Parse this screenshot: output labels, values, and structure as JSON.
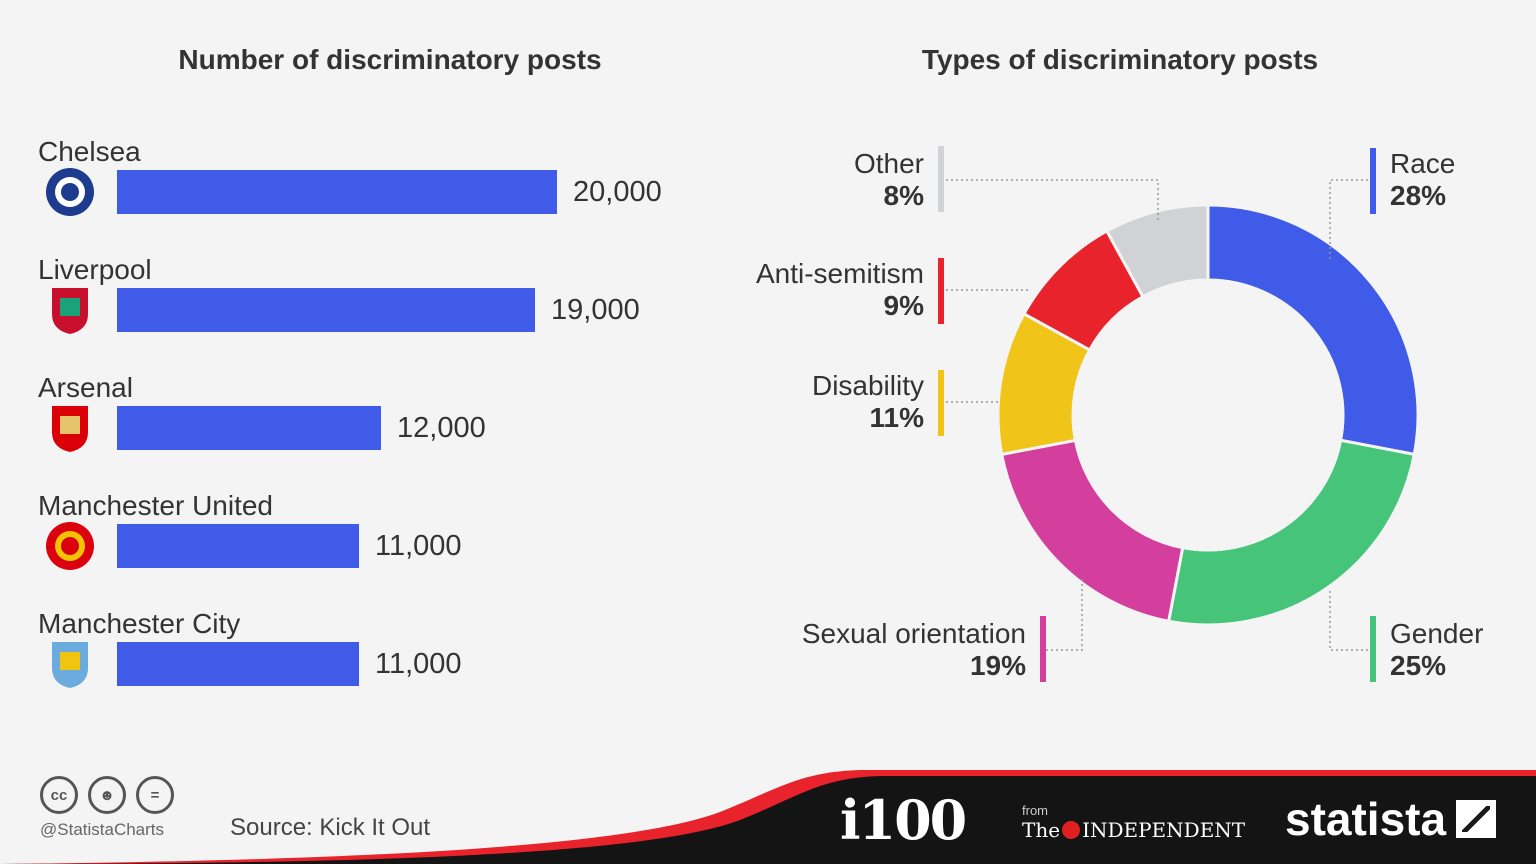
{
  "footer": {
    "handle": "@StatistaCharts",
    "source": "Source: Kick It Out",
    "cc_icons": [
      "cc-icon",
      "by-icon",
      "nd-icon"
    ],
    "brand_i100": "i100",
    "brand_from": "from",
    "brand_the": "The",
    "brand_independent": "INDEPENDENT",
    "brand_statista": "statista",
    "colors": {
      "dark": "#141414",
      "red": "#e8232b"
    }
  },
  "chart_data": [
    {
      "type": "bar",
      "title": "Number of discriminatory posts",
      "orientation": "horizontal",
      "categories": [
        "Chelsea",
        "Liverpool",
        "Arsenal",
        "Manchester United",
        "Manchester City"
      ],
      "values": [
        20000,
        19000,
        12000,
        11000,
        11000
      ],
      "value_labels": [
        "20,000",
        "19,000",
        "12,000",
        "11,000",
        "11,000"
      ],
      "icons": [
        "chelsea-crest-icon",
        "liverpool-crest-icon",
        "arsenal-crest-icon",
        "man-united-crest-icon",
        "man-city-crest-icon"
      ],
      "xlim": [
        0,
        20000
      ],
      "grid": false,
      "bar_color": "#3f5be8"
    },
    {
      "type": "pie",
      "style": "donut",
      "title": "Types of discriminatory posts",
      "slices": [
        {
          "label": "Race",
          "value": 28,
          "display": "28%",
          "color": "#3f5be8"
        },
        {
          "label": "Gender",
          "value": 25,
          "display": "25%",
          "color": "#45c47a"
        },
        {
          "label": "Sexual orientation",
          "value": 19,
          "display": "19%",
          "color": "#d43f9d"
        },
        {
          "label": "Disability",
          "value": 11,
          "display": "11%",
          "color": "#f0c419"
        },
        {
          "label": "Anti-semitism",
          "value": 9,
          "display": "9%",
          "color": "#e8232b"
        },
        {
          "label": "Other",
          "value": 8,
          "display": "8%",
          "color": "#d0d2d6"
        }
      ]
    }
  ]
}
